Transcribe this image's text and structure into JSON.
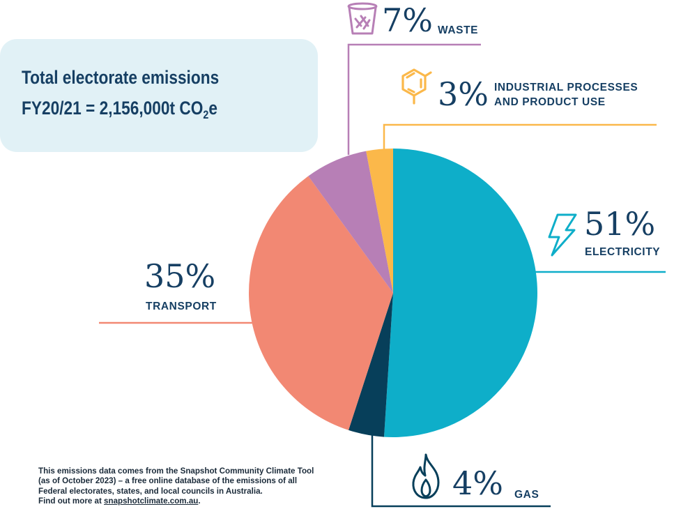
{
  "title": {
    "line1": "Total electorate emissions",
    "line2_prefix": "FY20/21 = 2,156,000t CO",
    "line2_sub": "2",
    "line2_suffix": "e"
  },
  "chart_data": {
    "type": "pie",
    "title": "Total electorate emissions FY20/21 = 2,156,000t CO2e",
    "unit": "%",
    "slices": [
      {
        "label": "ELECTRICITY",
        "value_label": "51%",
        "value": 51,
        "color": "#0eaec9",
        "icon": "lightning-icon"
      },
      {
        "label": "GAS",
        "value_label": "4%",
        "value": 4,
        "color": "#073f5a",
        "icon": "flame-icon"
      },
      {
        "label": "TRANSPORT",
        "value_label": "35%",
        "value": 35,
        "color": "#f28873",
        "icon": ""
      },
      {
        "label": "WASTE",
        "value_label": "7%",
        "value": 7,
        "color": "#b77fb6",
        "icon": "waste-bin-icon"
      },
      {
        "label": "INDUSTRIAL PROCESSES AND PRODUCT USE",
        "value_label": "3%",
        "value": 3,
        "color": "#fbb84a",
        "icon": "molecule-icon"
      }
    ]
  },
  "labels": {
    "waste": {
      "pct": "7%",
      "name": "WASTE"
    },
    "industrial": {
      "pct": "3%",
      "name_line1": "INDUSTRIAL PROCESSES",
      "name_line2": "AND PRODUCT USE"
    },
    "electricity": {
      "pct": "51%",
      "name": "ELECTRICITY"
    },
    "transport": {
      "pct": "35%",
      "name": "TRANSPORT"
    },
    "gas": {
      "pct": "4%",
      "name": "GAS"
    }
  },
  "footnote": {
    "line1": "This emissions data comes from the Snapshot Community Climate Tool",
    "line2": "(as of October 2023) – a free online database of the emissions of all",
    "line3": "Federal electorates, states, and local councils in Australia.",
    "line4_prefix": "Find out more at ",
    "line4_link": "snapshotclimate.com.au",
    "line4_suffix": "."
  }
}
